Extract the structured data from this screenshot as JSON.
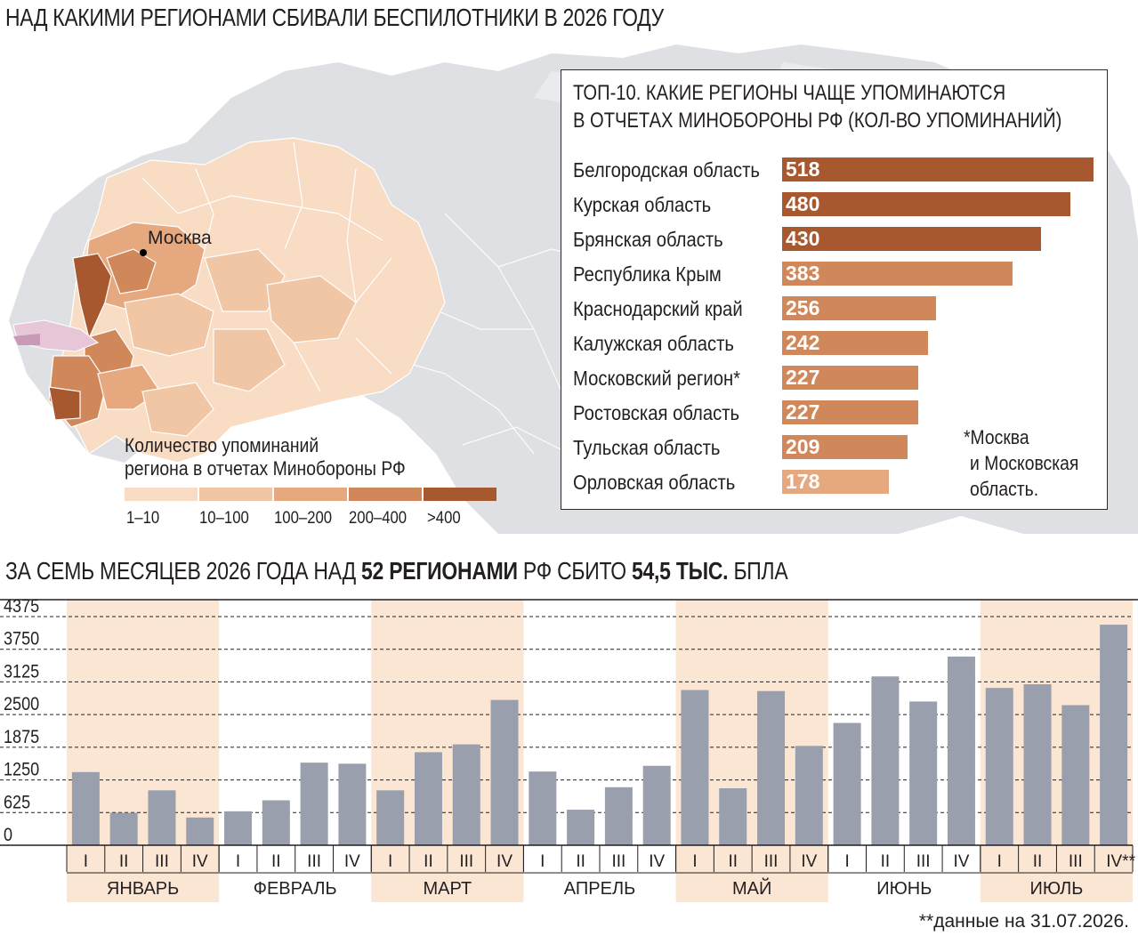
{
  "title": "НАД КАКИМИ РЕГИОНАМИ СБИВАЛИ БЕСПИЛОТНИКИ В 2026 ГОДУ",
  "map": {
    "city_label": "Москва",
    "legend_title_line1": "Количество упоминаний",
    "legend_title_line2": "региона в отчетах Минобороны РФ",
    "legend": [
      {
        "label": "1–10",
        "color": "#f9dcc4"
      },
      {
        "label": "10–100",
        "color": "#f1c6a4"
      },
      {
        "label": "100–200",
        "color": "#e5a87f"
      },
      {
        "label": "200–400",
        "color": "#d0875a"
      },
      {
        "label": ">400",
        "color": "#a8582e"
      }
    ]
  },
  "top10": {
    "title_line1": "ТОП-10. КАКИЕ РЕГИОНЫ ЧАЩЕ УПОМИНАЮТСЯ",
    "title_line2": "В ОТЧЕТАХ МИНОБОРОНЫ РФ (КОЛ-ВО УПОМИНАНИЙ)",
    "items": [
      {
        "name": "Белгородская область",
        "value": 518
      },
      {
        "name": "Курская область",
        "value": 480
      },
      {
        "name": "Брянская область",
        "value": 430
      },
      {
        "name": "Республика Крым",
        "value": 383
      },
      {
        "name": "Краснодарский край",
        "value": 256
      },
      {
        "name": "Калужская область",
        "value": 242
      },
      {
        "name": "Московский регион*",
        "value": 227
      },
      {
        "name": "Ростовская область",
        "value": 227
      },
      {
        "name": "Тульская область",
        "value": 209
      },
      {
        "name": "Орловская область",
        "value": 178
      }
    ],
    "footnote": [
      "*Москва",
      "и Московская",
      "область."
    ]
  },
  "subtitle": {
    "part1": "ЗА СЕМЬ МЕСЯЦЕВ 2026 ГОДА НАД ",
    "bold1": "52 РЕГИОНАМИ",
    "part2": " РФ СБИТО ",
    "bold2": "54,5 ТЫС.",
    "part3": " БПЛА"
  },
  "colors": {
    "bar": "#9a9fad",
    "month_band": "#fbe5d3",
    "top_bar_dark": "#a8582e",
    "top_bar_mid": "#d0875a",
    "top_bar_light": "#e5a87f"
  },
  "chart_data": {
    "type": "bar",
    "yticks": [
      0,
      625,
      1250,
      1875,
      2500,
      3125,
      3750,
      4375
    ],
    "ylim": [
      0,
      4375
    ],
    "months": [
      "ЯНВАРЬ",
      "ФЕВРАЛЬ",
      "МАРТ",
      "АПРЕЛЬ",
      "МАЙ",
      "ИЮНЬ",
      "ИЮЛЬ"
    ],
    "week_labels": [
      "I",
      "II",
      "III",
      "IV"
    ],
    "last_week_label": "IV**",
    "values": [
      [
        1400,
        620,
        1050,
        530
      ],
      [
        650,
        860,
        1580,
        1560
      ],
      [
        1050,
        1780,
        1930,
        2780
      ],
      [
        1410,
        680,
        1110,
        1520
      ],
      [
        2970,
        1090,
        2950,
        1900
      ],
      [
        2340,
        3230,
        2750,
        3610
      ],
      [
        3010,
        3080,
        2680,
        4220
      ]
    ],
    "footnote": "**данные на 31.07.2026."
  }
}
